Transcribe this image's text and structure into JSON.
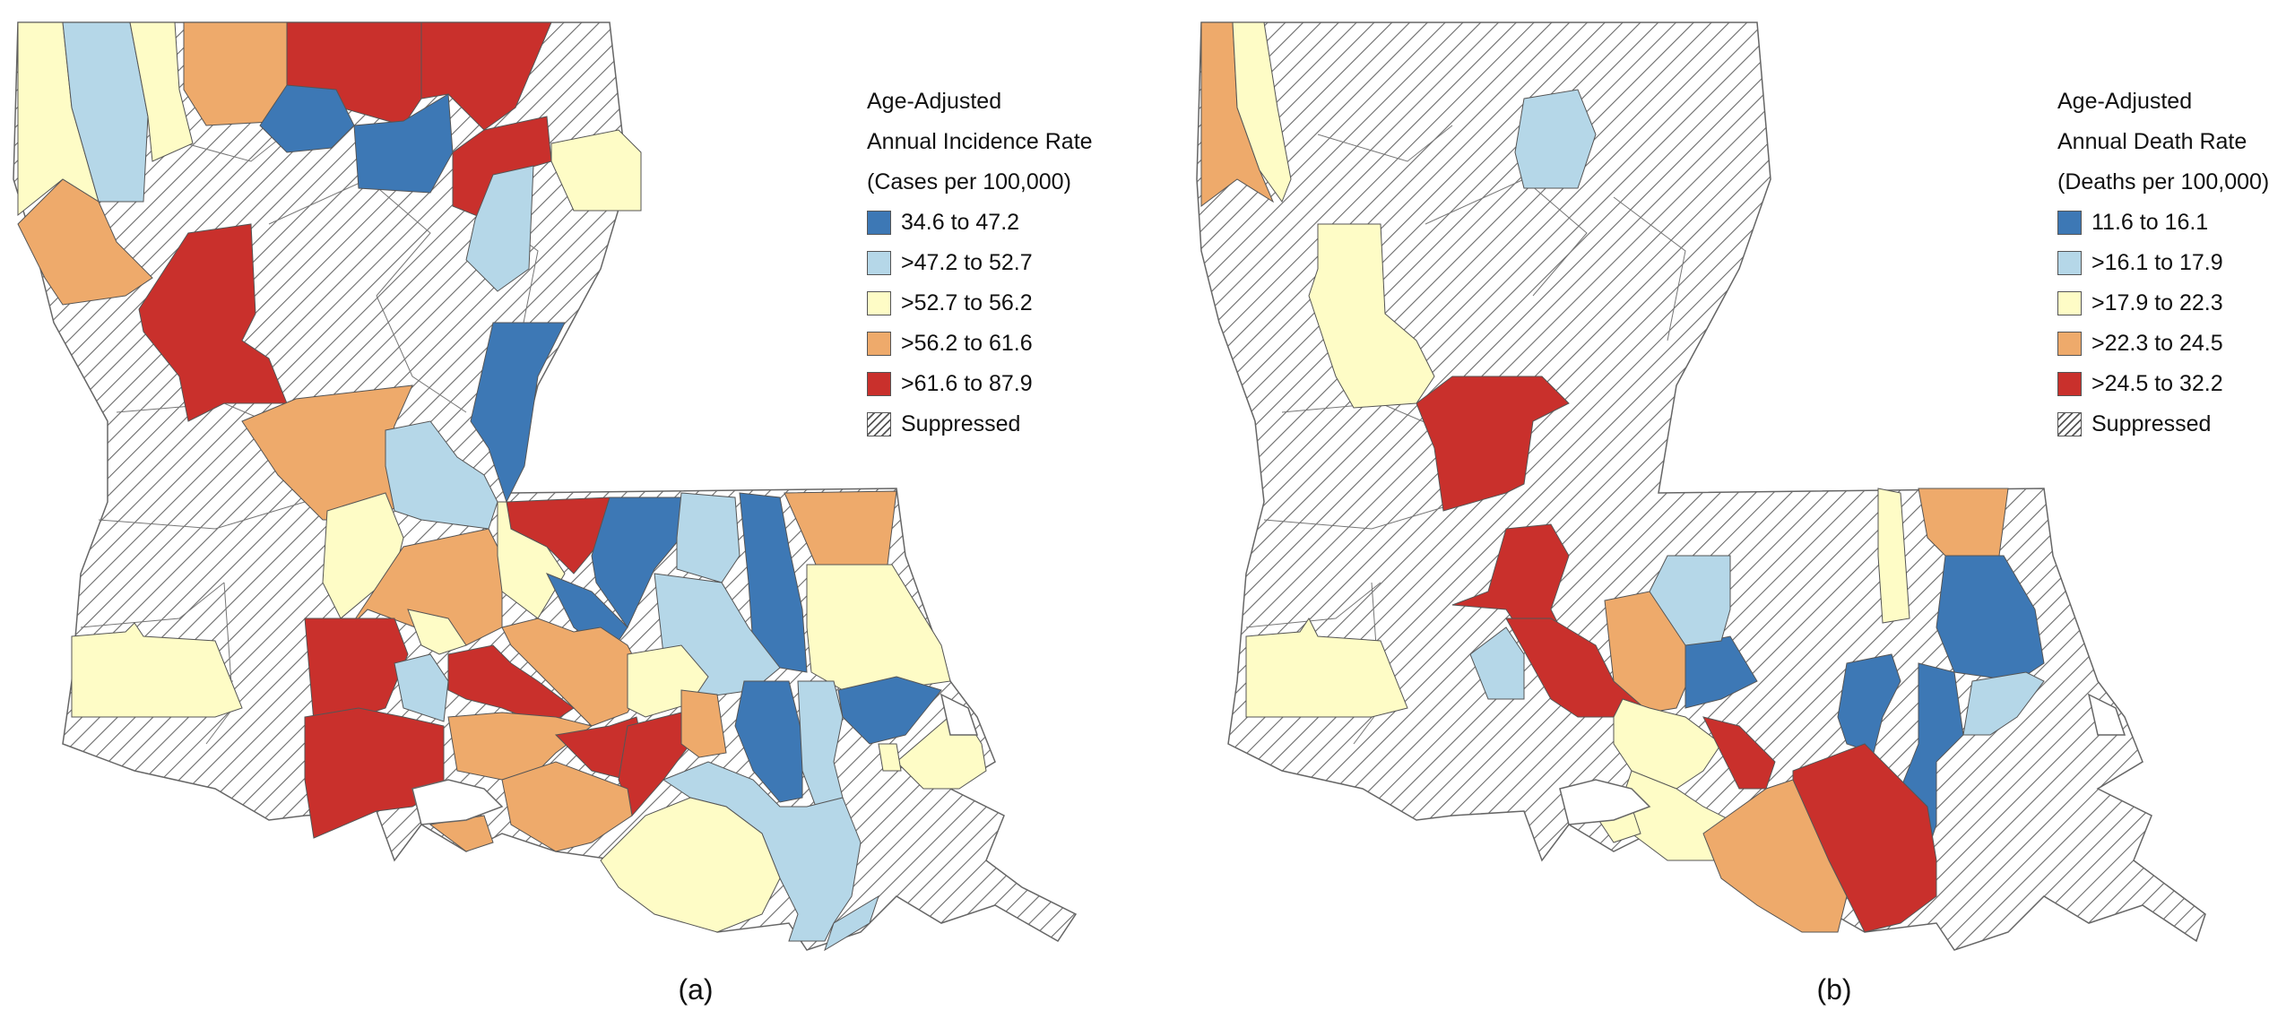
{
  "panels": [
    {
      "caption": "(a)",
      "legend": {
        "title_lines": [
          "Age-Adjusted",
          "Annual Incidence Rate",
          "(Cases per 100,000)"
        ],
        "items": [
          {
            "label": "34.6 to 47.2",
            "color": "#3d78b5"
          },
          {
            "label": ">47.2 to 52.7",
            "color": "#b5d7e8"
          },
          {
            "label": ">52.7 to 56.2",
            "color": "#fefcc6"
          },
          {
            "label": ">56.2 to 61.6",
            "color": "#eeaa6b"
          },
          {
            "label": ">61.6 to 87.9",
            "color": "#c9302c"
          },
          {
            "label": "Suppressed",
            "color": "hatched"
          }
        ]
      }
    },
    {
      "caption": "(b)",
      "legend": {
        "title_lines": [
          "Age-Adjusted",
          "Annual Death Rate",
          "(Deaths per 100,000)"
        ],
        "items": [
          {
            "label": "11.6 to 16.1",
            "color": "#3d78b5"
          },
          {
            "label": ">16.1 to 17.9",
            "color": "#b5d7e8"
          },
          {
            "label": ">17.9 to 22.3",
            "color": "#fefcc6"
          },
          {
            "label": ">22.3 to 24.5",
            "color": "#eeaa6b"
          },
          {
            "label": ">24.5 to 32.2",
            "color": "#c9302c"
          },
          {
            "label": "Suppressed",
            "color": "hatched"
          }
        ]
      }
    }
  ]
}
